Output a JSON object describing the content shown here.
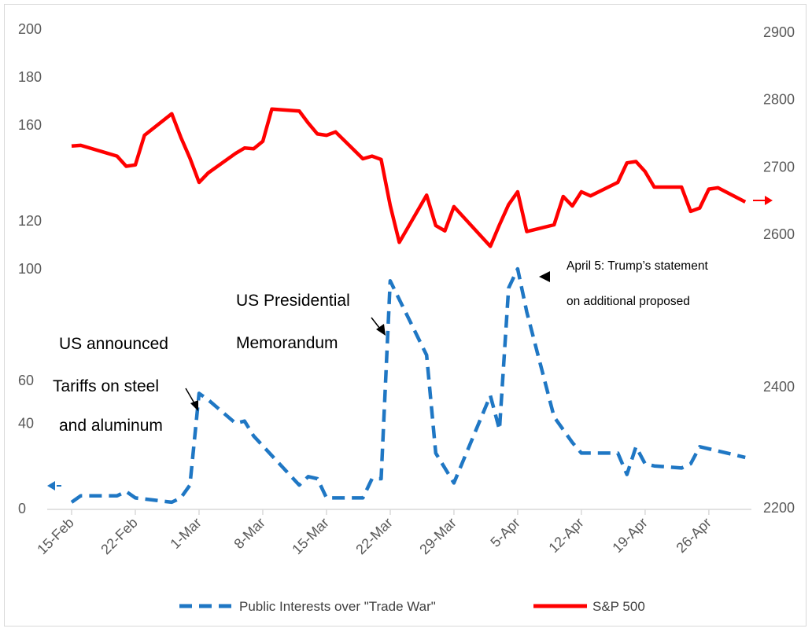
{
  "chart_data": {
    "type": "line",
    "x_ticks": [
      "15-Feb",
      "22-Feb",
      "1-Mar",
      "8-Mar",
      "15-Mar",
      "22-Mar",
      "29-Mar",
      "5-Apr",
      "12-Apr",
      "19-Apr",
      "26-Apr"
    ],
    "left_axis": {
      "ticks_lower": [
        "0",
        "40",
        "60"
      ],
      "ticks_upper": [
        "100",
        "120",
        "160",
        "180",
        "200"
      ]
    },
    "right_axis": {
      "ticks": [
        "2200",
        "2400",
        "2600",
        "2700",
        "2800",
        "2900"
      ]
    },
    "series": [
      {
        "name": "Public Interests over \"Trade War\"",
        "color": "#1f77c4",
        "style": "dashed",
        "axis": "left",
        "points": [
          [
            "2018-02-15",
            3
          ],
          [
            "2018-02-16",
            6
          ],
          [
            "2018-02-19",
            6
          ],
          [
            "2018-02-20",
            6
          ],
          [
            "2018-02-21",
            8
          ],
          [
            "2018-02-22",
            5
          ],
          [
            "2018-02-26",
            3
          ],
          [
            "2018-02-27",
            5
          ],
          [
            "2018-02-28",
            11
          ],
          [
            "2018-03-01",
            54
          ],
          [
            "2018-03-02",
            51
          ],
          [
            "2018-03-05",
            40
          ],
          [
            "2018-03-06",
            41
          ],
          [
            "2018-03-07",
            34
          ],
          [
            "2018-03-12",
            11
          ],
          [
            "2018-03-13",
            15
          ],
          [
            "2018-03-14",
            14
          ],
          [
            "2018-03-15",
            5
          ],
          [
            "2018-03-19",
            5
          ],
          [
            "2018-03-20",
            14
          ],
          [
            "2018-03-21",
            14
          ],
          [
            "2018-03-22",
            95
          ],
          [
            "2018-03-26",
            64
          ],
          [
            "2018-03-27",
            26
          ],
          [
            "2018-03-29",
            12
          ],
          [
            "2018-04-02",
            53
          ],
          [
            "2018-04-03",
            37
          ],
          [
            "2018-04-04",
            92
          ],
          [
            "2018-04-05",
            100
          ],
          [
            "2018-04-06",
            82
          ],
          [
            "2018-04-09",
            43
          ],
          [
            "2018-04-11",
            31
          ],
          [
            "2018-04-12",
            26
          ],
          [
            "2018-04-16",
            26
          ],
          [
            "2018-04-17",
            16
          ],
          [
            "2018-04-18",
            29
          ],
          [
            "2018-04-19",
            21
          ],
          [
            "2018-04-20",
            20
          ],
          [
            "2018-04-23",
            19
          ],
          [
            "2018-04-24",
            21
          ],
          [
            "2018-04-25",
            29
          ],
          [
            "2018-04-27",
            27
          ],
          [
            "2018-04-30",
            24
          ]
        ]
      },
      {
        "name": "S&P 500",
        "color": "#ff0000",
        "style": "solid",
        "axis": "right",
        "points": [
          [
            "2018-02-15",
            2731
          ],
          [
            "2018-02-16",
            2732
          ],
          [
            "2018-02-20",
            2716
          ],
          [
            "2018-02-21",
            2701
          ],
          [
            "2018-02-22",
            2703
          ],
          [
            "2018-02-23",
            2747
          ],
          [
            "2018-02-26",
            2779
          ],
          [
            "2018-02-27",
            2744
          ],
          [
            "2018-02-28",
            2713
          ],
          [
            "2018-03-01",
            2677
          ],
          [
            "2018-03-02",
            2691
          ],
          [
            "2018-03-05",
            2720
          ],
          [
            "2018-03-06",
            2728
          ],
          [
            "2018-03-07",
            2727
          ],
          [
            "2018-03-08",
            2738
          ],
          [
            "2018-03-09",
            2786
          ],
          [
            "2018-03-12",
            2783
          ],
          [
            "2018-03-13",
            2765
          ],
          [
            "2018-03-14",
            2749
          ],
          [
            "2018-03-15",
            2747
          ],
          [
            "2018-03-16",
            2752
          ],
          [
            "2018-03-19",
            2712
          ],
          [
            "2018-03-20",
            2716
          ],
          [
            "2018-03-21",
            2711
          ],
          [
            "2018-03-22",
            2643
          ],
          [
            "2018-03-23",
            2588
          ],
          [
            "2018-03-26",
            2658
          ],
          [
            "2018-03-27",
            2613
          ],
          [
            "2018-03-28",
            2605
          ],
          [
            "2018-03-29",
            2641
          ],
          [
            "2018-04-02",
            2582
          ],
          [
            "2018-04-03",
            2614
          ],
          [
            "2018-04-04",
            2644
          ],
          [
            "2018-04-05",
            2663
          ],
          [
            "2018-04-06",
            2604
          ],
          [
            "2018-04-09",
            2614
          ],
          [
            "2018-04-10",
            2656
          ],
          [
            "2018-04-11",
            2642
          ],
          [
            "2018-04-12",
            2663
          ],
          [
            "2018-04-13",
            2657
          ],
          [
            "2018-04-16",
            2677
          ],
          [
            "2018-04-17",
            2706
          ],
          [
            "2018-04-18",
            2708
          ],
          [
            "2018-04-19",
            2693
          ],
          [
            "2018-04-20",
            2670
          ],
          [
            "2018-04-23",
            2670
          ],
          [
            "2018-04-24",
            2634
          ],
          [
            "2018-04-25",
            2639
          ],
          [
            "2018-04-26",
            2667
          ],
          [
            "2018-04-27",
            2669
          ],
          [
            "2018-04-30",
            2648
          ]
        ]
      }
    ],
    "annotations": [
      {
        "lines": [
          "US announced",
          "Tariffs on steel",
          "and aluminum"
        ],
        "target": [
          "2018-03-01",
          54
        ]
      },
      {
        "lines": [
          "US Presidential",
          "Memorandum"
        ],
        "target": [
          "2018-03-22",
          95
        ]
      },
      {
        "lines": [
          "April 5: Trump’s statement",
          "on additional proposed"
        ],
        "target": [
          "2018-04-05",
          100
        ]
      }
    ],
    "legend": {
      "position": "bottom",
      "entries": [
        "Public Interests over \"Trade War\"",
        "S&P 500"
      ]
    },
    "grid": false
  }
}
